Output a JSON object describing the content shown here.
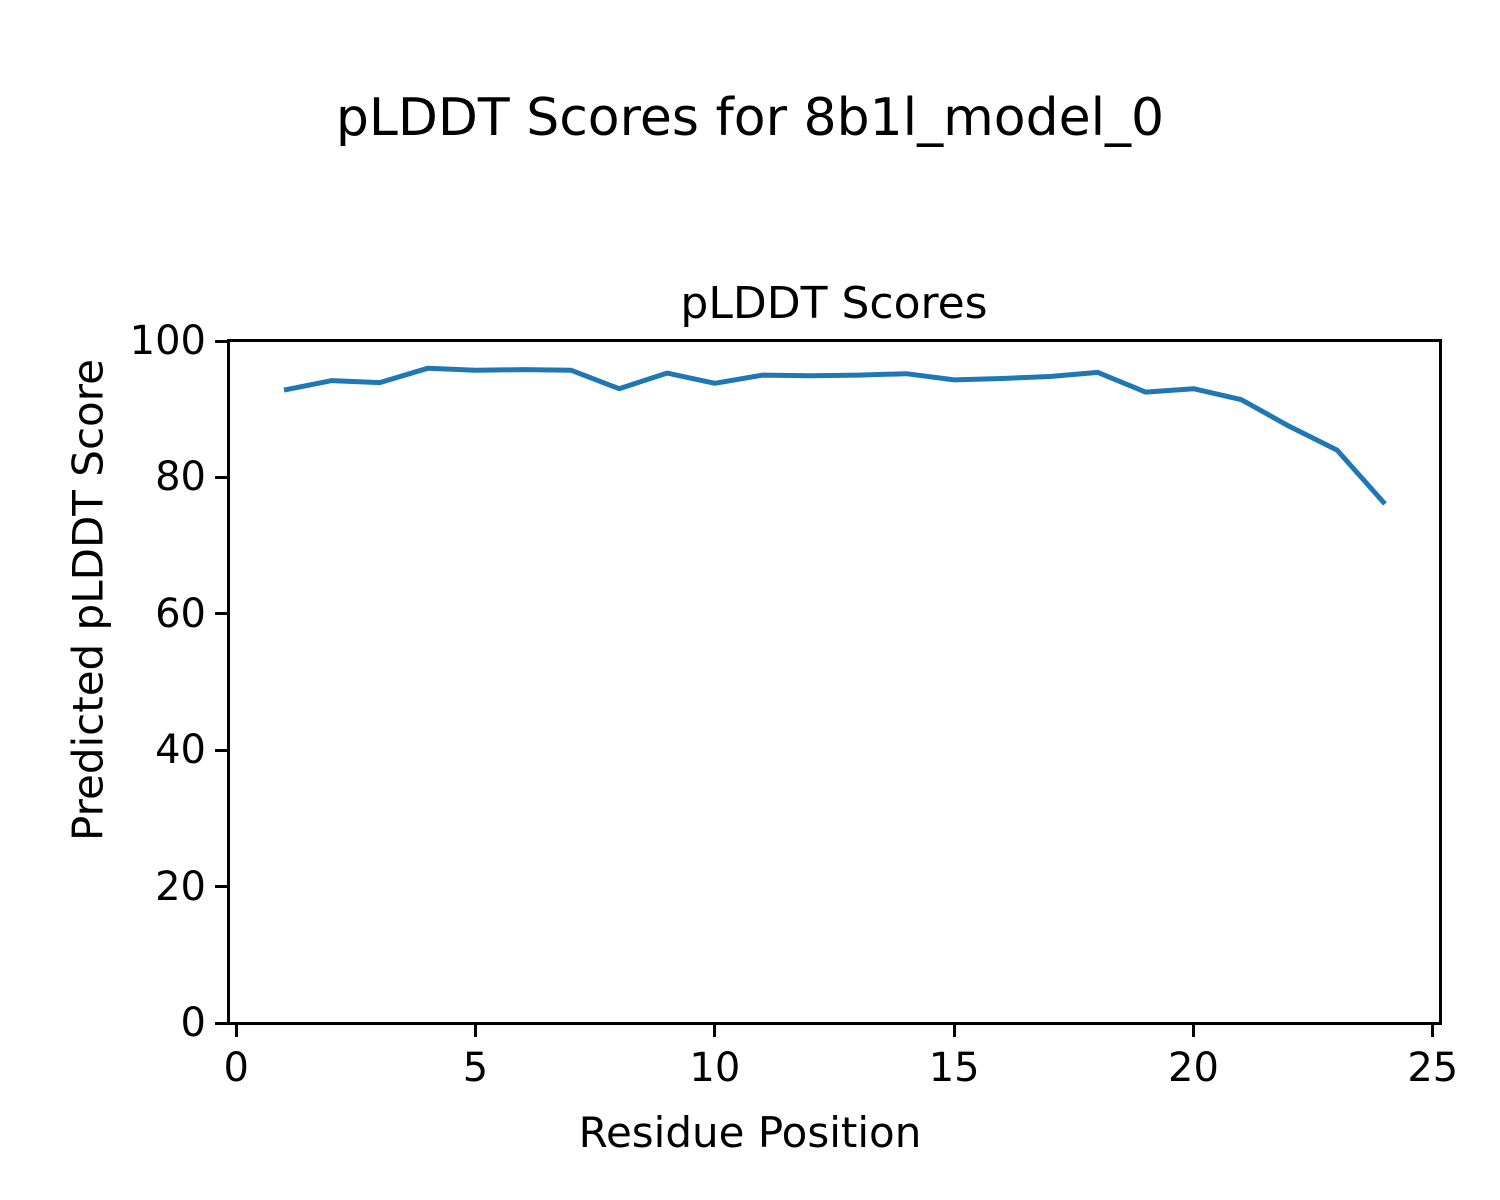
{
  "figure": {
    "suptitle": "pLDDT Scores for 8b1l_model_0"
  },
  "chart_data": {
    "type": "line",
    "title": "pLDDT Scores",
    "suptitle": "pLDDT Scores for 8b1l_model_0",
    "xlabel": "Residue Position",
    "ylabel": "Predicted pLDDT Score",
    "x": [
      1,
      2,
      3,
      4,
      5,
      6,
      7,
      8,
      9,
      10,
      11,
      12,
      13,
      14,
      15,
      16,
      17,
      18,
      19,
      20,
      21,
      22,
      23,
      24
    ],
    "y": [
      92.8,
      94.2,
      93.9,
      96.0,
      95.7,
      95.8,
      95.7,
      93.0,
      95.3,
      93.8,
      95.0,
      94.9,
      95.0,
      95.2,
      94.3,
      94.5,
      94.8,
      95.4,
      92.5,
      93.0,
      91.4,
      87.5,
      84.0,
      76.1
    ],
    "xlim": [
      -0.15,
      25.15
    ],
    "ylim": [
      0,
      100
    ],
    "xticks": [
      0,
      5,
      10,
      15,
      20,
      25
    ],
    "yticks": [
      0,
      20,
      40,
      60,
      80,
      100
    ],
    "legend": null,
    "grid": false,
    "line_color": "#1f77b4",
    "line_width": 5,
    "axes_color": "#000000",
    "background_color": "#ffffff"
  }
}
